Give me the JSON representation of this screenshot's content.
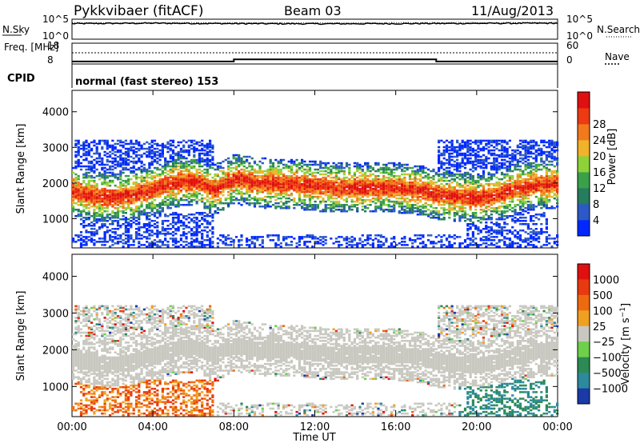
{
  "header": {
    "radar": "Pykkvibaer (fitACF)",
    "beam": "Beam 03",
    "date": "11/Aug/2013"
  },
  "chart_data": [
    {
      "type": "line",
      "panel": "noise",
      "ylabel_left": "N.Sky",
      "ylabel_right": "N.Search",
      "left_ticks": [
        "10^5",
        "10^0"
      ],
      "right_ticks": [
        "10^5",
        "10^0"
      ],
      "x": [
        "00:00",
        "04:00",
        "08:00",
        "12:00",
        "16:00",
        "20:00",
        "00:00"
      ],
      "series": [
        {
          "name": "N.Sky",
          "style": "solid",
          "level": "near 10^5",
          "values": [
            0.78,
            0.8,
            0.78,
            0.77,
            0.78,
            0.79,
            0.8
          ]
        },
        {
          "name": "N.Search",
          "style": "dotted",
          "values": [
            0.82,
            0.83,
            0.82,
            0.82,
            0.83,
            0.83,
            0.84
          ]
        }
      ]
    },
    {
      "type": "line",
      "panel": "frequency",
      "ylabel_left": "Freq. [MHz]",
      "ylabel_right": "Nave",
      "left_ticks": [
        "18",
        "8"
      ],
      "right_ticks": [
        "60",
        "0"
      ],
      "freq_steps": [
        {
          "from_hour": 0,
          "to_hour": 8,
          "value": 9.2
        },
        {
          "from_hour": 8,
          "to_hour": 18,
          "value": 10.2
        },
        {
          "from_hour": 18,
          "to_hour": 24,
          "value": 9.2
        }
      ],
      "nave_level": 38
    },
    {
      "type": "text",
      "panel": "cpid",
      "label": "CPID",
      "value": "normal (fast stereo) 153"
    },
    {
      "type": "heatmap",
      "panel": "power",
      "ylabel": "Slant Range [km]",
      "yticks": [
        1000,
        2000,
        3000,
        4000
      ],
      "ylim": [
        180,
        4600
      ],
      "xlim": [
        0,
        24
      ],
      "colorbar": {
        "label": "Power [dB]",
        "ticks": [
          "4",
          "8",
          "12",
          "16",
          "20",
          "24",
          "28"
        ],
        "colors": [
          "#0028ff",
          "#2c59c6",
          "#267c5e",
          "#3aa04a",
          "#8ed23a",
          "#f0b32a",
          "#f27a1c",
          "#ee3a12",
          "#e01010"
        ]
      },
      "echo_band_km": [
        [
          0,
          1750
        ],
        [
          1,
          1600
        ],
        [
          2,
          1580
        ],
        [
          3,
          1650
        ],
        [
          4,
          1800
        ],
        [
          5,
          2000
        ],
        [
          6,
          2050
        ],
        [
          7,
          1800
        ],
        [
          8,
          2100
        ],
        [
          9,
          2000
        ],
        [
          10,
          1950
        ],
        [
          11,
          1950
        ],
        [
          12,
          1900
        ],
        [
          13,
          1850
        ],
        [
          14,
          1850
        ],
        [
          15,
          1850
        ],
        [
          16,
          1850
        ],
        [
          17,
          1800
        ],
        [
          18,
          1650
        ],
        [
          19,
          1600
        ],
        [
          20,
          1550
        ],
        [
          21,
          1650
        ],
        [
          22,
          1850
        ],
        [
          23,
          1950
        ],
        [
          24,
          1950
        ]
      ]
    },
    {
      "type": "heatmap",
      "panel": "velocity",
      "ylabel": "Slant Range [km]",
      "yticks": [
        1000,
        2000,
        3000,
        4000
      ],
      "ylim": [
        180,
        4600
      ],
      "xlim": [
        0,
        24
      ],
      "xlabel": "Time UT",
      "xticklabels": [
        "00:00",
        "04:00",
        "08:00",
        "12:00",
        "16:00",
        "20:00",
        "00:00"
      ],
      "colorbar": {
        "label": "Velocity [m s^-1]",
        "ticks": [
          "1000",
          "500",
          "100",
          "25",
          "−25",
          "−100",
          "−500",
          "−1000"
        ],
        "colors": [
          "#1a3aa8",
          "#2c8a9c",
          "#2c8a55",
          "#6ed04a",
          "#c8c8c0",
          "#f0a020",
          "#ee6a10",
          "#e83a10",
          "#e01010"
        ]
      }
    }
  ]
}
